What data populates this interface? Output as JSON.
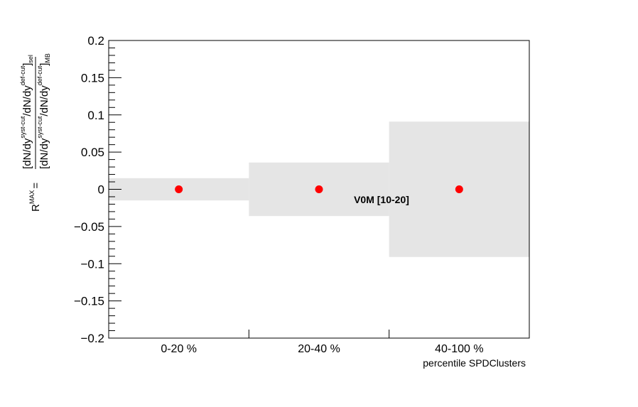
{
  "chart_data": {
    "type": "scatter",
    "xlabel": "percentile SPDClusters",
    "ylabel": {
      "prefix": "R",
      "prefix_sup": "MAX",
      "equals": "=",
      "num_open": "[dN/dy",
      "num_sup1": "syst-cut",
      "num_mid": "/dN/dy",
      "num_sup2": "def-cut",
      "num_close": "]",
      "num_sub": "sel",
      "den_open": "[dN/dy",
      "den_sup1": "syst-cut",
      "den_mid": "/dN/dy",
      "den_sup2": "def-cut",
      "den_close": "]",
      "den_sub": "MB"
    },
    "ylim": [
      -0.2,
      0.2
    ],
    "yticks": [
      -0.2,
      -0.15,
      -0.1,
      -0.05,
      0,
      0.05,
      0.1,
      0.15,
      0.2
    ],
    "ytick_labels": [
      "−0.2",
      "−0.15",
      "−0.1",
      "−0.05",
      "0",
      "0.05",
      "0.1",
      "0.15",
      "0.2"
    ],
    "categories": [
      "0-20 %",
      "20-40 %",
      "40-100 %"
    ],
    "series": [
      {
        "values": [
          0,
          0,
          0
        ],
        "color": "#ff0000"
      }
    ],
    "systematic_bands": [
      0.015,
      0.036,
      0.091
    ],
    "band_color": "#e5e5e5",
    "annotation": "V0M [10-20]",
    "grid": false
  }
}
